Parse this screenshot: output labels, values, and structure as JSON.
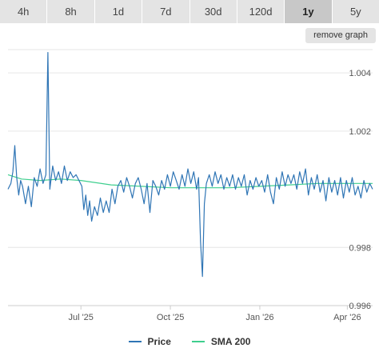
{
  "tabs": [
    {
      "label": "4h",
      "active": false
    },
    {
      "label": "8h",
      "active": false
    },
    {
      "label": "1d",
      "active": false
    },
    {
      "label": "7d",
      "active": false
    },
    {
      "label": "30d",
      "active": false
    },
    {
      "label": "120d",
      "active": false
    },
    {
      "label": "1y",
      "active": true
    },
    {
      "label": "5y",
      "active": false
    }
  ],
  "remove_graph_label": "remove graph",
  "legend": {
    "price_label": "Price",
    "sma_label": "SMA 200"
  },
  "colors": {
    "price": "#2f75b5",
    "sma": "#3ecf8e",
    "grid": "#e6e6e6",
    "tab_bg": "#e4e4e4",
    "tab_active_bg": "#c8c8c8"
  },
  "chart_data": {
    "type": "line",
    "x_range": [
      "2025-04-17",
      "2026-04-27"
    ],
    "ylim": [
      0.996,
      1.0048
    ],
    "yticks": [
      "0.996",
      "0.998",
      "1.002",
      "1.004"
    ],
    "xticks": [
      {
        "label": "Jul '25",
        "date": "2025-07-01"
      },
      {
        "label": "Oct '25",
        "date": "2025-10-01"
      },
      {
        "label": "Jan '26",
        "date": "2026-01-01"
      },
      {
        "label": "Apr '26",
        "date": "2026-04-01"
      }
    ],
    "series": [
      {
        "name": "Price",
        "points": [
          [
            "2025-04-17",
            1.0
          ],
          [
            "2025-04-20",
            1.0002
          ],
          [
            "2025-04-22",
            1.0006
          ],
          [
            "2025-04-24",
            1.0015
          ],
          [
            "2025-04-26",
            1.0004
          ],
          [
            "2025-04-28",
            0.9998
          ],
          [
            "2025-04-30",
            1.0003
          ],
          [
            "2025-05-02",
            1.0001
          ],
          [
            "2025-05-05",
            0.9995
          ],
          [
            "2025-05-08",
            1.0001
          ],
          [
            "2025-05-11",
            0.9994
          ],
          [
            "2025-05-14",
            1.0004
          ],
          [
            "2025-05-17",
            1.0001
          ],
          [
            "2025-05-20",
            1.0007
          ],
          [
            "2025-05-23",
            1.0002
          ],
          [
            "2025-05-26",
            1.0005
          ],
          [
            "2025-05-28",
            1.0047
          ],
          [
            "2025-05-30",
            1.0
          ],
          [
            "2025-06-02",
            1.0008
          ],
          [
            "2025-06-05",
            1.0003
          ],
          [
            "2025-06-08",
            1.0006
          ],
          [
            "2025-06-11",
            1.0002
          ],
          [
            "2025-06-14",
            1.0008
          ],
          [
            "2025-06-17",
            1.0003
          ],
          [
            "2025-06-20",
            1.0006
          ],
          [
            "2025-06-23",
            1.0004
          ],
          [
            "2025-06-26",
            1.0005
          ],
          [
            "2025-06-29",
            1.0003
          ],
          [
            "2025-07-02",
            1.0001
          ],
          [
            "2025-07-04",
            0.9993
          ],
          [
            "2025-07-06",
            0.9998
          ],
          [
            "2025-07-08",
            0.9991
          ],
          [
            "2025-07-10",
            0.9996
          ],
          [
            "2025-07-12",
            0.9989
          ],
          [
            "2025-07-15",
            0.9994
          ],
          [
            "2025-07-18",
            0.9991
          ],
          [
            "2025-07-21",
            0.9997
          ],
          [
            "2025-07-24",
            0.9992
          ],
          [
            "2025-07-27",
            0.9996
          ],
          [
            "2025-07-30",
            0.9992
          ],
          [
            "2025-08-02",
            1.0
          ],
          [
            "2025-08-05",
            0.9995
          ],
          [
            "2025-08-08",
            1.0001
          ],
          [
            "2025-08-11",
            1.0003
          ],
          [
            "2025-08-14",
            0.9999
          ],
          [
            "2025-08-17",
            1.0004
          ],
          [
            "2025-08-20",
            1.0001
          ],
          [
            "2025-08-23",
            0.9997
          ],
          [
            "2025-08-26",
            1.0002
          ],
          [
            "2025-08-29",
            1.0004
          ],
          [
            "2025-09-01",
            1.0
          ],
          [
            "2025-09-04",
            0.9995
          ],
          [
            "2025-09-07",
            1.0002
          ],
          [
            "2025-09-10",
            0.9992
          ],
          [
            "2025-09-13",
            1.0003
          ],
          [
            "2025-09-16",
            1.0001
          ],
          [
            "2025-09-19",
            0.9998
          ],
          [
            "2025-09-22",
            1.0003
          ],
          [
            "2025-09-25",
            1.0
          ],
          [
            "2025-09-28",
            1.0005
          ],
          [
            "2025-10-01",
            1.0001
          ],
          [
            "2025-10-04",
            1.0006
          ],
          [
            "2025-10-07",
            1.0003
          ],
          [
            "2025-10-10",
            1.0
          ],
          [
            "2025-10-13",
            1.0005
          ],
          [
            "2025-10-16",
            1.0001
          ],
          [
            "2025-10-19",
            1.0007
          ],
          [
            "2025-10-22",
            1.0002
          ],
          [
            "2025-10-25",
            1.0006
          ],
          [
            "2025-10-28",
            1.0
          ],
          [
            "2025-10-30",
            1.0004
          ],
          [
            "2025-11-01",
            0.9982
          ],
          [
            "2025-11-03",
            0.997
          ],
          [
            "2025-11-05",
            0.9995
          ],
          [
            "2025-11-07",
            1.0002
          ],
          [
            "2025-11-10",
            1.0005
          ],
          [
            "2025-11-13",
            1.0001
          ],
          [
            "2025-11-16",
            1.0006
          ],
          [
            "2025-11-19",
            1.0002
          ],
          [
            "2025-11-22",
            1.0005
          ],
          [
            "2025-11-25",
            1.0
          ],
          [
            "2025-11-28",
            1.0004
          ],
          [
            "2025-12-01",
            1.0001
          ],
          [
            "2025-12-04",
            1.0005
          ],
          [
            "2025-12-07",
            1.0
          ],
          [
            "2025-12-10",
            1.0004
          ],
          [
            "2025-12-13",
            1.0001
          ],
          [
            "2025-12-16",
            1.0005
          ],
          [
            "2025-12-19",
            0.9998
          ],
          [
            "2025-12-22",
            1.0003
          ],
          [
            "2025-12-25",
            1.0
          ],
          [
            "2025-12-28",
            1.0004
          ],
          [
            "2025-12-31",
            1.0001
          ],
          [
            "2026-01-03",
            1.0003
          ],
          [
            "2026-01-06",
            0.9999
          ],
          [
            "2026-01-09",
            1.0005
          ],
          [
            "2026-01-12",
            0.9999
          ],
          [
            "2026-01-15",
            0.9995
          ],
          [
            "2026-01-18",
            1.0004
          ],
          [
            "2026-01-21",
            1.0
          ],
          [
            "2026-01-24",
            1.0006
          ],
          [
            "2026-01-27",
            1.0001
          ],
          [
            "2026-01-30",
            1.0005
          ],
          [
            "2026-02-02",
            1.0002
          ],
          [
            "2026-02-05",
            1.0005
          ],
          [
            "2026-02-08",
            1.0
          ],
          [
            "2026-02-11",
            1.0006
          ],
          [
            "2026-02-14",
            1.0002
          ],
          [
            "2026-02-17",
            1.0007
          ],
          [
            "2026-02-20",
            0.9998
          ],
          [
            "2026-02-23",
            1.0004
          ],
          [
            "2026-02-26",
            1.0
          ],
          [
            "2026-03-01",
            1.0005
          ],
          [
            "2026-03-04",
            0.9999
          ],
          [
            "2026-03-07",
            1.0003
          ],
          [
            "2026-03-10",
            0.9996
          ],
          [
            "2026-03-13",
            1.0004
          ],
          [
            "2026-03-16",
            0.9999
          ],
          [
            "2026-03-19",
            1.0003
          ],
          [
            "2026-03-22",
            0.9998
          ],
          [
            "2026-03-25",
            1.0004
          ],
          [
            "2026-03-28",
            0.9997
          ],
          [
            "2026-03-31",
            1.0003
          ],
          [
            "2026-04-03",
            0.9999
          ],
          [
            "2026-04-06",
            1.0004
          ],
          [
            "2026-04-09",
            0.9998
          ],
          [
            "2026-04-12",
            1.0001
          ],
          [
            "2026-04-15",
            0.9997
          ],
          [
            "2026-04-18",
            1.0003
          ],
          [
            "2026-04-21",
            0.9999
          ],
          [
            "2026-04-24",
            1.0002
          ],
          [
            "2026-04-27",
            1.0
          ]
        ]
      },
      {
        "name": "SMA 200",
        "points": [
          [
            "2025-04-17",
            1.0005
          ],
          [
            "2025-05-01",
            1.00035
          ],
          [
            "2025-05-20",
            1.0003
          ],
          [
            "2025-06-10",
            1.00035
          ],
          [
            "2025-07-01",
            1.0003
          ],
          [
            "2025-08-01",
            1.00015
          ],
          [
            "2025-09-01",
            1.0001
          ],
          [
            "2025-10-01",
            1.00005
          ],
          [
            "2025-11-01",
            1.00005
          ],
          [
            "2025-12-01",
            1.00005
          ],
          [
            "2026-01-01",
            1.0001
          ],
          [
            "2026-02-01",
            1.00015
          ],
          [
            "2026-03-01",
            1.0002
          ],
          [
            "2026-04-01",
            1.0002
          ],
          [
            "2026-04-27",
            1.0002
          ]
        ]
      }
    ]
  }
}
